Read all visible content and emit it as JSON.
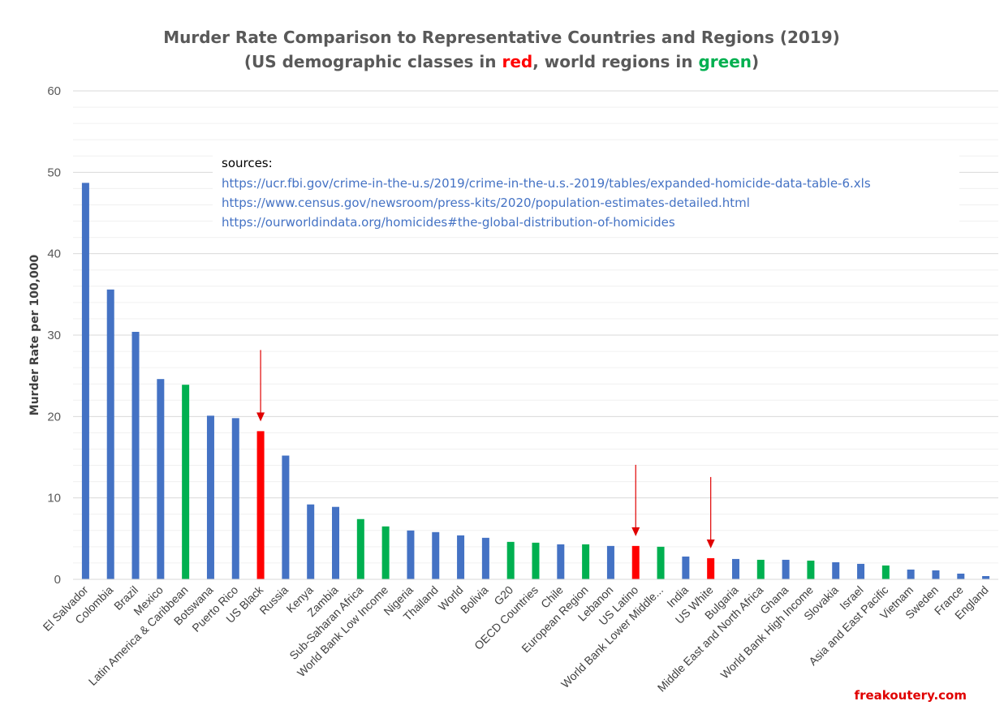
{
  "colors": {
    "country": "#4472C4",
    "us": "#FF0000",
    "region": "#00B050",
    "arrow": "#E00000",
    "grid": "#D9D9D9",
    "link": "#4472C4",
    "brand": "#E00000"
  },
  "chart_data": {
    "type": "bar",
    "title_line1": "Murder Rate Comparison to Representative Countries and Regions (2019)",
    "title_line2": {
      "prefix": "(US demographic classes in ",
      "red_word": "red",
      "middle": ", world regions in ",
      "green_word": "green",
      "suffix": ")"
    },
    "ylabel": "Murder Rate per 100,000",
    "xlabel": "",
    "ylim": [
      0,
      60
    ],
    "yticks": [
      0,
      10,
      20,
      30,
      40,
      50,
      60
    ],
    "grid": true,
    "categories": [
      "El Salvador",
      "Colombia",
      "Brazil",
      "Mexico",
      "Latin America & Caribbean",
      "Botswana",
      "Puerto Rico",
      "US Black",
      "Russia",
      "Kenya",
      "Zambia",
      "Sub-Saharan Africa",
      "World Bank Low Income",
      "Nigeria",
      "Thailand",
      "World",
      "Bolivia",
      "G20",
      "OECD Countries",
      "Chile",
      "European Region",
      "Lebanon",
      "US Latino",
      "World Bank Lower Middle...",
      "India",
      "US White",
      "Bulgaria",
      "Middle East and North Africa",
      "Ghana",
      "World Bank High Income",
      "Slovakia",
      "Israel",
      "Asia and East Pacific",
      "Vietnam",
      "Sweden",
      "France",
      "England"
    ],
    "values": [
      48.7,
      35.6,
      30.4,
      24.6,
      23.9,
      20.1,
      19.8,
      18.2,
      15.2,
      9.2,
      8.9,
      7.4,
      6.5,
      6.0,
      5.8,
      5.4,
      5.1,
      4.6,
      4.5,
      4.3,
      4.3,
      4.1,
      4.1,
      4.0,
      2.8,
      2.6,
      2.5,
      2.4,
      2.4,
      2.3,
      2.1,
      1.9,
      1.7,
      1.2,
      1.1,
      0.7,
      0.4
    ],
    "groups": [
      "country",
      "country",
      "country",
      "country",
      "region",
      "country",
      "country",
      "us",
      "country",
      "country",
      "country",
      "region",
      "region",
      "country",
      "country",
      "country",
      "country",
      "region",
      "region",
      "country",
      "region",
      "country",
      "us",
      "region",
      "country",
      "us",
      "country",
      "region",
      "country",
      "region",
      "country",
      "country",
      "region",
      "country",
      "country",
      "country",
      "country"
    ],
    "arrows": [
      "US Black",
      "US Latino",
      "US White"
    ],
    "sources": {
      "heading": "sources:",
      "links": [
        "https://ucr.fbi.gov/crime-in-the-u.s/2019/crime-in-the-u.s.-2019/tables/expanded-homicide-data-table-6.xls",
        "https://www.census.gov/newsroom/press-kits/2020/population-estimates-detailed.html",
        "https://ourworldindata.org/homicides#the-global-distribution-of-homicides"
      ]
    },
    "watermark": "freakoutery.com"
  }
}
